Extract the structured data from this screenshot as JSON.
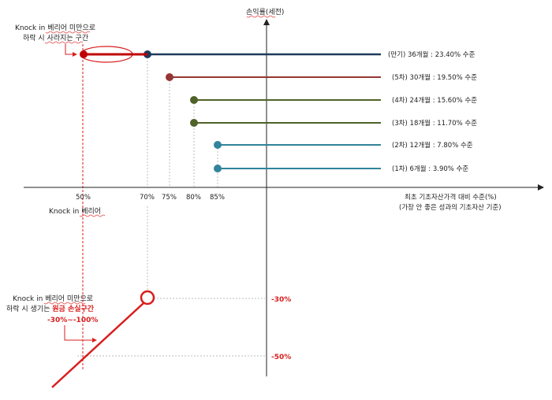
{
  "y_axis_label": "손익률(세전)",
  "x_axis_label_line1": "최초 기초자산가격 대비 수준(%)",
  "x_axis_label_line2": "(가장 안 좋은 성과의 기초자산 기준)",
  "x_ticks": [
    "50%",
    "70%",
    "75%",
    "80%",
    "85%"
  ],
  "knock_in_label": "Knock in 베리어",
  "top_note_line1": "Knock in 베리어 미만으로",
  "top_note_line2": "하락 시 사라지는 구간",
  "bottom_note_line1": "Knock in 베리어 미만으로",
  "bottom_note_line2_prefix": "하락 시 생기는 ",
  "bottom_note_line2_highlight": "원금 손실구간",
  "bottom_note_line3": "-30%~-100%",
  "y_ticks": [
    "-30%",
    "-50%"
  ],
  "payoff_lines": [
    {
      "label": "(만기) 36개월 : 23.40% 수준",
      "barrier": "70%",
      "color": "#1f3a5a"
    },
    {
      "label": "(5차) 30개월 : 19.50% 수준",
      "barrier": "75%",
      "color": "#943634"
    },
    {
      "label": "(4차) 24개월 : 15.60% 수준",
      "barrier": "80%",
      "color": "#4f6228"
    },
    {
      "label": "(3차) 18개월 : 11.70% 수준",
      "barrier": "80%",
      "color": "#4f6228"
    },
    {
      "label": "(2차) 12개월 : 7.80% 수준",
      "barrier": "85%",
      "color": "#31849b"
    },
    {
      "label": "(1차) 6개월 : 3.90% 수준",
      "barrier": "85%",
      "color": "#31849b"
    }
  ],
  "colors": {
    "accent_red": "#d81e1e",
    "axis": "#222222",
    "guide": "#bdbdbd"
  }
}
